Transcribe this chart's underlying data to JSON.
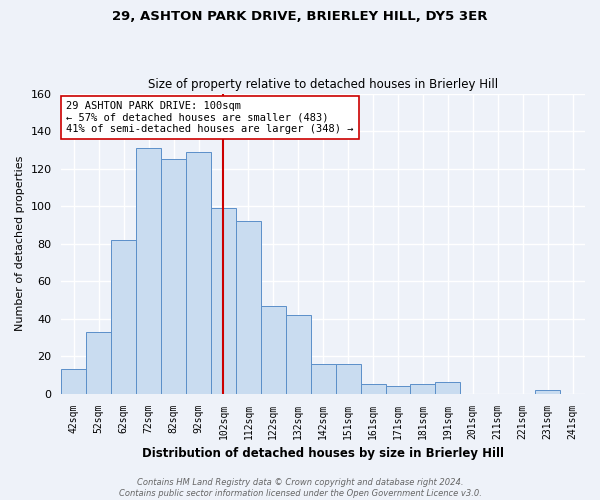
{
  "title1": "29, ASHTON PARK DRIVE, BRIERLEY HILL, DY5 3ER",
  "title2": "Size of property relative to detached houses in Brierley Hill",
  "xlabel": "Distribution of detached houses by size in Brierley Hill",
  "ylabel": "Number of detached properties",
  "bar_labels": [
    "42sqm",
    "52sqm",
    "62sqm",
    "72sqm",
    "82sqm",
    "92sqm",
    "102sqm",
    "112sqm",
    "122sqm",
    "132sqm",
    "142sqm",
    "151sqm",
    "161sqm",
    "171sqm",
    "181sqm",
    "191sqm",
    "201sqm",
    "211sqm",
    "221sqm",
    "231sqm",
    "241sqm"
  ],
  "bar_values": [
    13,
    33,
    82,
    131,
    125,
    129,
    99,
    92,
    47,
    42,
    16,
    16,
    5,
    4,
    5,
    6,
    0,
    0,
    0,
    2,
    0
  ],
  "bar_color": "#c9dcf0",
  "bar_edge_color": "#5b8fc9",
  "background_color": "#eef2f9",
  "grid_color": "#ffffff",
  "vline_color": "#cc0000",
  "vline_x_index": 6,
  "annotation_line1": "29 ASHTON PARK DRIVE: 100sqm",
  "annotation_line2": "← 57% of detached houses are smaller (483)",
  "annotation_line3": "41% of semi-detached houses are larger (348) →",
  "annotation_box_color": "#ffffff",
  "annotation_box_edge": "#cc0000",
  "ylim": [
    0,
    160
  ],
  "yticks": [
    0,
    20,
    40,
    60,
    80,
    100,
    120,
    140,
    160
  ],
  "footer": "Contains HM Land Registry data © Crown copyright and database right 2024.\nContains public sector information licensed under the Open Government Licence v3.0."
}
